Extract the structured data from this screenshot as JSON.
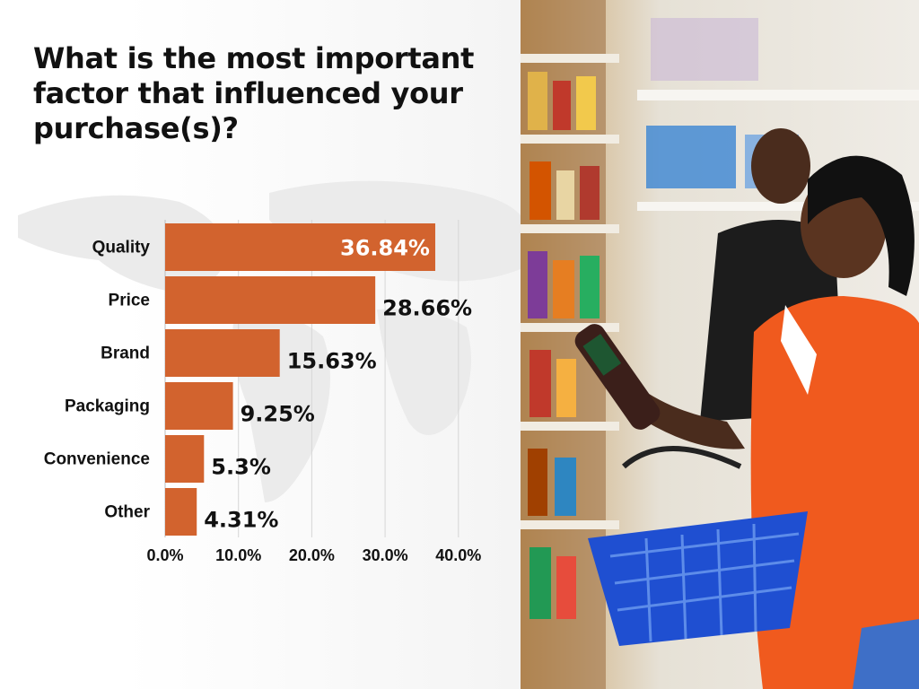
{
  "title": "What is the most important factor that influenced your purchase(s)?",
  "chart_data": {
    "type": "bar",
    "orientation": "horizontal",
    "categories": [
      "Quality",
      "Price",
      "Brand",
      "Packaging",
      "Convenience",
      "Other"
    ],
    "values": [
      36.84,
      28.66,
      15.63,
      9.25,
      5.3,
      4.31
    ],
    "value_labels": [
      "36.84%",
      "28.66%",
      "15.63%",
      "9.25%",
      "5.3%",
      "4.31%"
    ],
    "xlim": [
      0,
      40
    ],
    "x_ticks": [
      0,
      10,
      20,
      30,
      40
    ],
    "x_tick_labels": [
      "0.0%",
      "10.0%",
      "20.0%",
      "30.0%",
      "40.0%"
    ],
    "grid": true,
    "bar_color": "#d2632e"
  },
  "photo": {
    "description_icon": "shopper-photo",
    "colors": {
      "shirt": "#f05a1e",
      "basket": "#1f4fd1"
    }
  }
}
